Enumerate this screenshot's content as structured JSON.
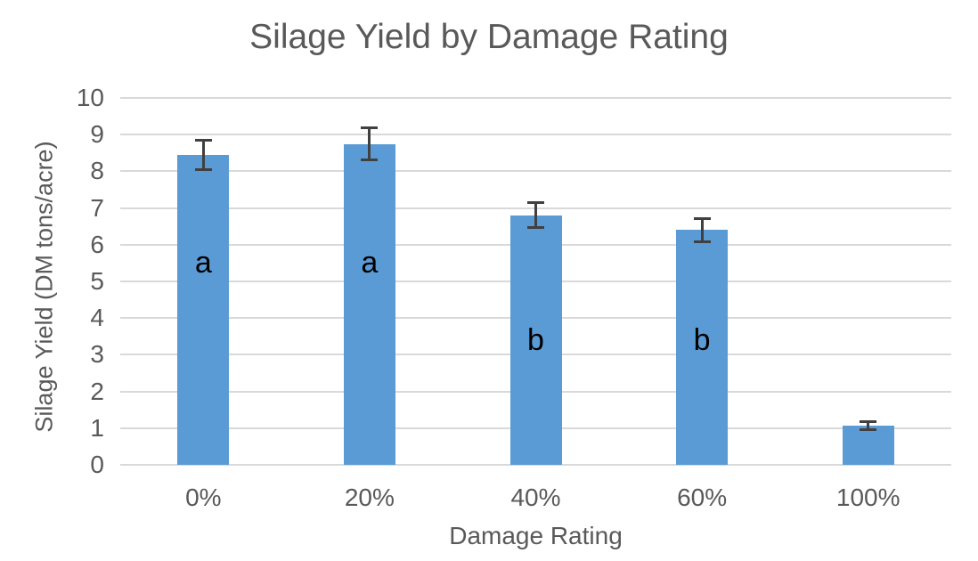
{
  "chart_data": {
    "type": "bar",
    "title": "Silage Yield by Damage Rating",
    "xlabel": "Damage Rating",
    "ylabel": "Silage Yield (DM tons/acre)",
    "categories": [
      "0%",
      "20%",
      "40%",
      "60%",
      "100%"
    ],
    "values": [
      8.45,
      8.75,
      6.8,
      6.4,
      1.07
    ],
    "error_bars": [
      0.42,
      0.45,
      0.35,
      0.32,
      0.12
    ],
    "yticks": [
      0,
      1,
      2,
      3,
      4,
      5,
      6,
      7,
      8,
      9,
      10
    ],
    "ylim": [
      0,
      10
    ],
    "grid": true,
    "legend": false,
    "annotations": [
      {
        "category": "0%",
        "label": "a",
        "y": 5.5
      },
      {
        "category": "20%",
        "label": "a",
        "y": 5.5
      },
      {
        "category": "40%",
        "label": "b",
        "y": 3.4
      },
      {
        "category": "60%",
        "label": "b",
        "y": 3.4
      }
    ],
    "colors": {
      "bar": "#5B9BD5",
      "error_bar": "#404040",
      "gridline": "#D9D9D9",
      "text": "#595959",
      "annotation_text": "#000000",
      "background": "#FFFFFF"
    }
  }
}
